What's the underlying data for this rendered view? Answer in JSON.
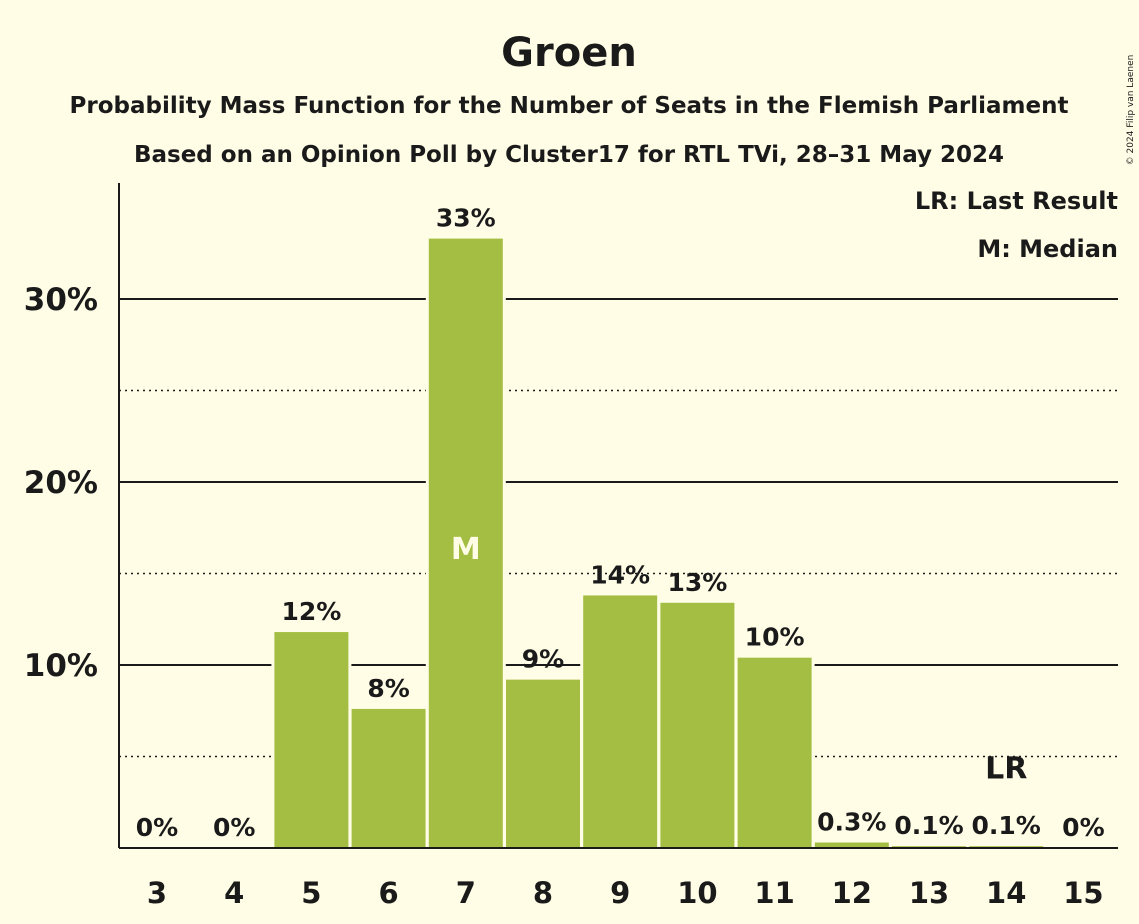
{
  "chart_data": {
    "type": "bar",
    "title": "Groen",
    "subtitle": "Probability Mass Function for the Number of Seats in the Flemish Parliament",
    "subtitle2": "Based on an Opinion Poll by Cluster17 for RTL TVi, 28–31 May 2024",
    "credit": "© 2024 Filip van Laenen",
    "categories": [
      "3",
      "4",
      "5",
      "6",
      "7",
      "8",
      "9",
      "10",
      "11",
      "12",
      "13",
      "14",
      "15"
    ],
    "values": [
      0,
      0,
      11.8,
      7.6,
      33.3,
      9.2,
      13.8,
      13.4,
      10.4,
      0.3,
      0.1,
      0.1,
      0
    ],
    "value_labels": [
      "0%",
      "0%",
      "12%",
      "8%",
      "33%",
      "9%",
      "14%",
      "13%",
      "10%",
      "0.3%",
      "0.1%",
      "0.1%",
      "0%"
    ],
    "yticks": [
      10,
      20,
      30
    ],
    "ytick_labels": [
      "10%",
      "20%",
      "30%"
    ],
    "minor_gridlines": [
      5,
      15,
      25
    ],
    "ylim": [
      0,
      36
    ],
    "median_category": "7",
    "median_marker": "M",
    "last_result_category": "14",
    "last_result_marker": "LR",
    "legend": [
      "LR: Last Result",
      "M: Median"
    ],
    "legend_position": "top-right",
    "colors": {
      "bar": "#a3be43",
      "background": "#fffde6",
      "text": "#1a1a1a"
    }
  }
}
